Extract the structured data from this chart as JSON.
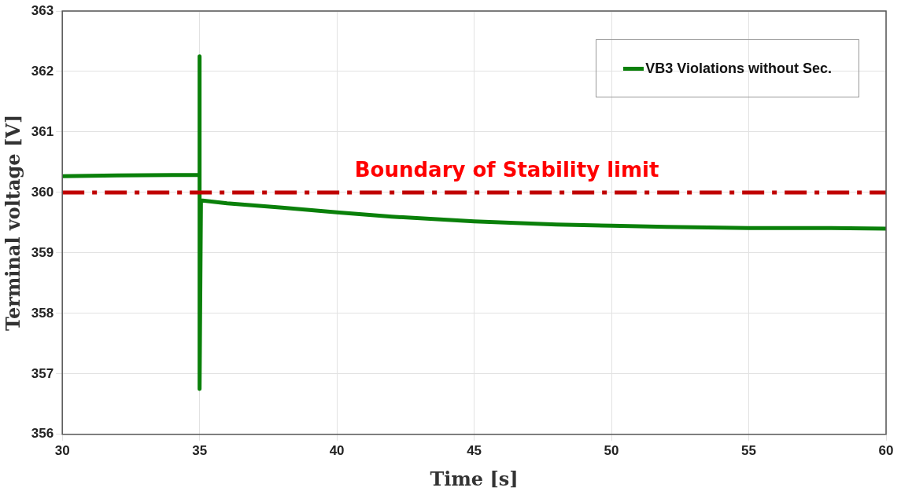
{
  "chart_data": {
    "type": "line",
    "xlabel": "Time [s]",
    "ylabel": "Terminal voltage [V]",
    "xlim": [
      30,
      60
    ],
    "xticks": [
      30,
      35,
      40,
      45,
      50,
      55,
      60
    ],
    "ylim": [
      356,
      363
    ],
    "yticks": [
      356,
      357,
      358,
      359,
      360,
      361,
      362,
      363
    ],
    "grid": true,
    "legend": "top right",
    "marker": "none",
    "line_style": "solid",
    "series": [
      {
        "name": "VB3 Violations without Sec.",
        "color": "#0a800a",
        "x": [
          30,
          32,
          35,
          35,
          35,
          35.05,
          36,
          38,
          40,
          42,
          45,
          48,
          50,
          52,
          55,
          58,
          60
        ],
        "values": [
          360.27,
          360.28,
          360.29,
          362.25,
          356.75,
          359.87,
          359.82,
          359.75,
          359.67,
          359.6,
          359.52,
          359.47,
          359.45,
          359.43,
          359.41,
          359.41,
          359.4
        ]
      }
    ],
    "ref_lines": [
      {
        "axis": "y",
        "value": 360,
        "label": "Boundary of Stability limit",
        "color": "#c00000",
        "line_style": "dashdot"
      }
    ]
  }
}
